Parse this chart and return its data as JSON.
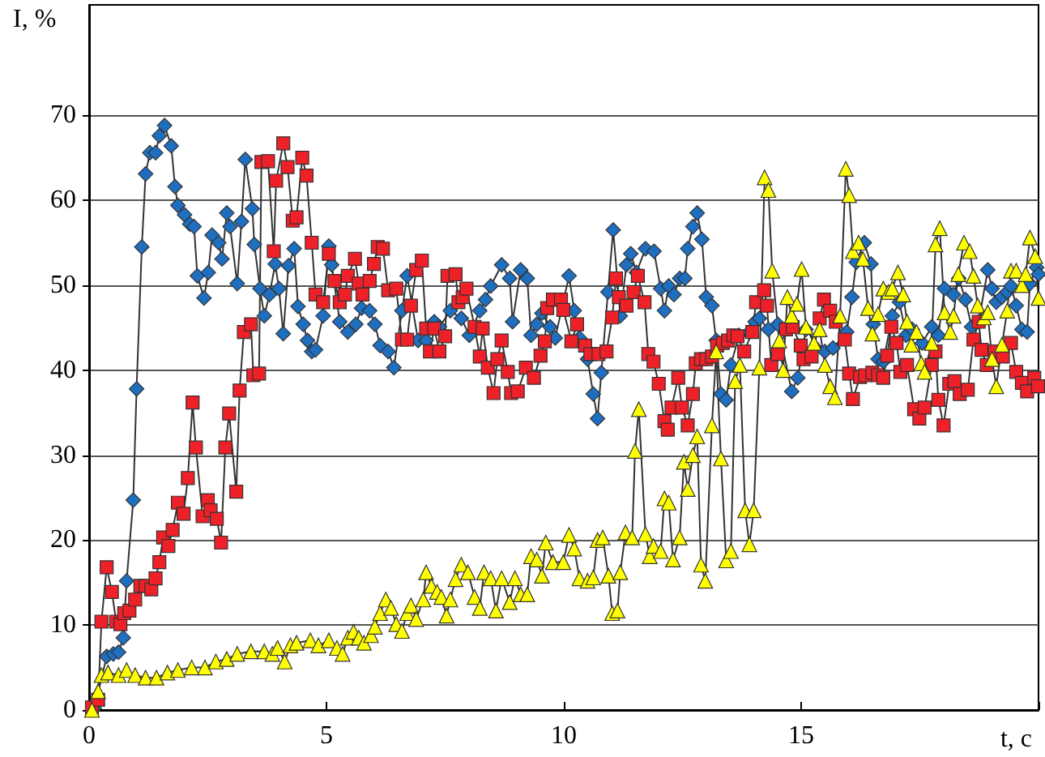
{
  "chart_data": {
    "type": "line",
    "xlabel": "t, c",
    "ylabel": "I, %",
    "xlim": [
      0,
      20
    ],
    "xticks": [
      0,
      5,
      10,
      15,
      {
        "value": 20,
        "label": null
      }
    ],
    "ylim": [
      0,
      83
    ],
    "yticks": [
      0,
      10,
      20,
      30,
      40,
      50,
      60,
      70
    ],
    "grid": "y",
    "line_style": "solid",
    "series": [
      {
        "color": "#1f6fc0",
        "marker": "diamond",
        "x": [
          0.11,
          0.37,
          0.51,
          0.62,
          0.72,
          0.79,
          0.93,
          1.0,
          1.11,
          1.19,
          1.28,
          1.4,
          1.48,
          1.59,
          1.73,
          1.81,
          1.87,
          2.01,
          2.12,
          2.21,
          2.28,
          2.42,
          2.51,
          2.59,
          2.73,
          2.8,
          2.9,
          2.97,
          3.12,
          3.21,
          3.29,
          3.44,
          3.48,
          3.6,
          3.69,
          3.8,
          3.92,
          4.0,
          4.09,
          4.2,
          4.32,
          4.4,
          4.51,
          4.6,
          4.69,
          4.77,
          4.93,
          5.05,
          5.11,
          5.28,
          5.45,
          5.62,
          5.74,
          5.91,
          6.02,
          6.13,
          6.3,
          6.42,
          6.59,
          6.7,
          6.93,
          7.1,
          7.27,
          7.38,
          7.61,
          7.84,
          8.01,
          8.23,
          8.35,
          8.46,
          8.69,
          8.86,
          8.92,
          9.09,
          9.23,
          9.31,
          9.43,
          9.54,
          9.71,
          9.82,
          10.11,
          10.22,
          10.33,
          10.5,
          10.62,
          10.71,
          10.79,
          10.93,
          11.04,
          11.19,
          11.32,
          11.41,
          11.53,
          11.72,
          11.9,
          12.04,
          12.12,
          12.21,
          12.32,
          12.44,
          12.55,
          12.61,
          12.72,
          12.81,
          12.91,
          13.0,
          13.12,
          13.21,
          13.31,
          13.42,
          13.52,
          13.69,
          13.91,
          14.03,
          14.12,
          14.31,
          14.51,
          14.8,
          14.93,
          15.1,
          15.5,
          15.67,
          15.96,
          16.07,
          16.16,
          16.33,
          16.47,
          16.52,
          16.62,
          16.73,
          16.92,
          17.07,
          17.21,
          17.34,
          17.55,
          17.75,
          17.89,
          18.02,
          18.21,
          18.32,
          18.46,
          18.59,
          18.74,
          18.93,
          19.02,
          19.11,
          19.23,
          19.34,
          19.42,
          19.53,
          19.65,
          19.76,
          19.82,
          19.96,
          20.0
        ],
        "values": [
          0.2,
          6.3,
          6.6,
          6.8,
          8.5,
          15.2,
          24.7,
          37.8,
          54.5,
          63.1,
          65.6,
          65.6,
          67.6,
          68.8,
          66.4,
          61.6,
          59.4,
          58.3,
          57.2,
          56.9,
          51.1,
          48.5,
          51.5,
          55.9,
          55,
          53.1,
          58.5,
          56.9,
          50.2,
          57.5,
          64.8,
          59,
          54.8,
          49.6,
          46.4,
          48.9,
          52.5,
          49.6,
          44.3,
          52.3,
          54.3,
          47.5,
          45.4,
          43.5,
          42.2,
          42.4,
          46.4,
          54.6,
          52.4,
          45.7,
          44.5,
          45.4,
          47.3,
          47,
          45.4,
          42.9,
          42.2,
          40.3,
          47,
          51.1,
          43.5,
          43.5,
          45.7,
          45.1,
          47,
          46.1,
          44.1,
          47,
          48.3,
          49.9,
          52.4,
          50.8,
          45.7,
          51.8,
          50.8,
          44.1,
          45.4,
          46.7,
          45.1,
          43.8,
          51.1,
          47,
          43.8,
          41.3,
          37.2,
          34.3,
          39.7,
          49.2,
          56.5,
          46.4,
          52.4,
          53.7,
          51.5,
          54.3,
          54,
          49.6,
          47,
          49.9,
          48.9,
          50.8,
          50.8,
          54.3,
          56.9,
          58.5,
          55.4,
          48.6,
          47.6,
          43.5,
          37.2,
          36.5,
          40.6,
          44.1,
          44.5,
          45.7,
          46.1,
          44.8,
          45.4,
          37.5,
          39.1,
          44.8,
          42.2,
          42.6,
          44.5,
          48.6,
          52.7,
          55,
          52.5,
          45.4,
          41.3,
          41,
          46.4,
          48,
          44.1,
          44.8,
          43.2,
          45.1,
          44.1,
          49.6,
          48.9,
          50.8,
          48.3,
          45.1,
          45.7,
          51.8,
          49.6,
          48,
          48.6,
          49.2,
          49.9,
          47.6,
          44.8,
          44.5,
          50.2,
          52.1,
          51.3
        ]
      },
      {
        "color": "#ee2028",
        "marker": "square",
        "x": [
          0.06,
          0.19,
          0.26,
          0.37,
          0.48,
          0.57,
          0.66,
          0.74,
          0.85,
          0.97,
          1.08,
          1.19,
          1.31,
          1.4,
          1.48,
          1.56,
          1.67,
          1.76,
          1.87,
          1.99,
          2.08,
          2.18,
          2.25,
          2.39,
          2.5,
          2.56,
          2.69,
          2.78,
          2.87,
          2.95,
          3.1,
          3.17,
          3.26,
          3.41,
          3.46,
          3.58,
          3.63,
          3.77,
          3.89,
          3.94,
          4.09,
          4.18,
          4.29,
          4.37,
          4.49,
          4.58,
          4.69,
          4.77,
          4.93,
          5.05,
          5.17,
          5.28,
          5.39,
          5.45,
          5.6,
          5.68,
          5.76,
          5.91,
          6.0,
          6.08,
          6.19,
          6.3,
          6.47,
          6.59,
          6.7,
          6.78,
          6.89,
          7.01,
          7.1,
          7.18,
          7.27,
          7.38,
          7.5,
          7.55,
          7.72,
          7.78,
          7.87,
          7.95,
          8.12,
          8.23,
          8.29,
          8.4,
          8.52,
          8.6,
          8.69,
          8.82,
          8.89,
          9.03,
          9.2,
          9.37,
          9.51,
          9.6,
          9.65,
          9.77,
          9.94,
          9.99,
          10.16,
          10.28,
          10.45,
          10.56,
          10.73,
          10.9,
          11.02,
          11.1,
          11.16,
          11.32,
          11.47,
          11.56,
          11.7,
          11.78,
          11.89,
          12.0,
          12.12,
          12.19,
          12.27,
          12.41,
          12.49,
          12.61,
          12.72,
          12.78,
          12.89,
          13.0,
          13.12,
          13.23,
          13.35,
          13.46,
          13.57,
          13.66,
          13.8,
          13.97,
          14.05,
          14.22,
          14.28,
          14.37,
          14.51,
          14.68,
          14.82,
          14.99,
          15.05,
          15.22,
          15.39,
          15.48,
          15.61,
          15.73,
          15.92,
          16.01,
          16.09,
          16.24,
          16.35,
          16.5,
          16.62,
          16.73,
          16.81,
          16.9,
          17.01,
          17.09,
          17.23,
          17.38,
          17.49,
          17.6,
          17.75,
          17.83,
          17.89,
          18.0,
          18.12,
          18.23,
          18.34,
          18.51,
          18.63,
          18.74,
          18.8,
          18.91,
          19.08,
          19.25,
          19.42,
          19.53,
          19.65,
          19.76,
          19.91,
          19.99
        ],
        "values": [
          0.3,
          1.2,
          10.4,
          16.8,
          13.9,
          10.4,
          10.1,
          11.4,
          11.7,
          13,
          14.6,
          14.6,
          14.2,
          15.5,
          17.4,
          20.3,
          19.3,
          21.2,
          24.4,
          23.1,
          27.3,
          36.2,
          30.9,
          22.8,
          24.7,
          23.5,
          22.5,
          19.7,
          30.9,
          34.9,
          25.7,
          37.6,
          44.5,
          45.4,
          39.4,
          39.6,
          64.5,
          64.6,
          54,
          62.3,
          66.7,
          63.9,
          57.6,
          58,
          65,
          62.9,
          55,
          48.9,
          48,
          53.7,
          50.5,
          48,
          48.9,
          51.1,
          53.1,
          50.2,
          48.9,
          50.5,
          52.5,
          54.5,
          54.3,
          49.4,
          49.6,
          43.6,
          43.6,
          47.6,
          51.8,
          52.9,
          44.9,
          42.2,
          44.9,
          42.2,
          44,
          51.1,
          51.3,
          48,
          48.6,
          49.6,
          45.1,
          41.6,
          44.9,
          40.3,
          37.3,
          41.3,
          43.5,
          39.8,
          37.3,
          37.5,
          40.3,
          39.1,
          41.7,
          43.4,
          47.3,
          48.3,
          48.3,
          47.1,
          43.4,
          45.4,
          42.9,
          41.9,
          41.9,
          42.2,
          46.2,
          50.8,
          48.6,
          47.6,
          49.2,
          51.1,
          48,
          41.9,
          41,
          38.4,
          34,
          33,
          35.6,
          39.1,
          35.6,
          33.5,
          37.2,
          40.8,
          41.3,
          41.3,
          41.6,
          42.9,
          43.2,
          43.5,
          44.1,
          44,
          42.2,
          44.5,
          48,
          49.4,
          47.6,
          40.6,
          41.9,
          44.8,
          45.1,
          42.9,
          41.3,
          41.6,
          46.1,
          48.3,
          47,
          45.7,
          43.6,
          39.6,
          36.6,
          39.2,
          39.4,
          39.7,
          39.4,
          39.1,
          41.7,
          45.1,
          43.2,
          39.8,
          40.6,
          35.4,
          34.3,
          35.6,
          40.6,
          42.2,
          36.5,
          33.5,
          38.4,
          38.7,
          37.2,
          37.7,
          43.6,
          45.7,
          42.4,
          40.6,
          42.2,
          41.6,
          43.2,
          39.8,
          38.5,
          37.5,
          39.1,
          38.1
        ]
      },
      {
        "color": "#ffff00",
        "marker": "triangle",
        "x": [
          0.06,
          0.19,
          0.26,
          0.4,
          0.62,
          0.79,
          0.97,
          1.19,
          1.42,
          1.65,
          1.87,
          2.16,
          2.44,
          2.67,
          2.9,
          3.12,
          3.41,
          3.69,
          3.86,
          3.97,
          4.12,
          4.24,
          4.37,
          4.66,
          4.83,
          5.05,
          5.22,
          5.34,
          5.45,
          5.57,
          5.68,
          5.79,
          5.94,
          6.02,
          6.13,
          6.25,
          6.36,
          6.47,
          6.59,
          6.7,
          6.78,
          6.89,
          7.04,
          7.1,
          7.21,
          7.33,
          7.42,
          7.53,
          7.61,
          7.72,
          7.84,
          7.98,
          8.12,
          8.23,
          8.32,
          8.46,
          8.57,
          8.69,
          8.86,
          8.97,
          9.09,
          9.23,
          9.31,
          9.43,
          9.54,
          9.62,
          9.77,
          9.99,
          10.11,
          10.22,
          10.33,
          10.5,
          10.62,
          10.71,
          10.82,
          10.94,
          11.02,
          11.13,
          11.19,
          11.3,
          11.44,
          11.5,
          11.58,
          11.72,
          11.81,
          11.89,
          12.04,
          12.12,
          12.21,
          12.3,
          12.44,
          12.53,
          12.61,
          12.72,
          12.81,
          12.89,
          12.98,
          13.12,
          13.21,
          13.31,
          13.42,
          13.52,
          13.61,
          13.71,
          13.82,
          13.91,
          14.0,
          14.12,
          14.23,
          14.31,
          14.39,
          14.54,
          14.62,
          14.71,
          14.8,
          14.91,
          15.01,
          15.1,
          15.27,
          15.39,
          15.5,
          15.61,
          15.71,
          15.82,
          15.94,
          16.01,
          16.09,
          16.21,
          16.3,
          16.41,
          16.5,
          16.62,
          16.73,
          16.84,
          16.92,
          17.04,
          17.15,
          17.23,
          17.32,
          17.43,
          17.53,
          17.6,
          17.75,
          17.83,
          17.92,
          18.02,
          18.14,
          18.21,
          18.31,
          18.43,
          18.55,
          18.63,
          18.72,
          18.85,
          18.93,
          19.02,
          19.11,
          19.23,
          19.34,
          19.42,
          19.53,
          19.65,
          19.73,
          19.82,
          19.93,
          20.0
        ],
        "values": [
          0,
          2.2,
          4.1,
          4.4,
          4.1,
          4.7,
          4.1,
          3.8,
          3.8,
          4.4,
          4.7,
          5,
          5,
          5.7,
          6,
          6.6,
          6.9,
          6.9,
          6.6,
          7.3,
          5.7,
          7.6,
          7.9,
          8.2,
          7.6,
          8.2,
          7.3,
          6.6,
          8.5,
          9.2,
          8.5,
          7.9,
          8.8,
          9.8,
          11.4,
          13,
          12,
          10.1,
          9.3,
          11.4,
          12.3,
          10.7,
          13,
          16.2,
          14.6,
          13.9,
          13.3,
          11.1,
          13,
          15.4,
          17.1,
          16.2,
          13.3,
          12,
          16.2,
          15.5,
          11.7,
          15.5,
          12.7,
          15.5,
          13.6,
          13.6,
          18.1,
          17.7,
          15.8,
          19.7,
          17.4,
          17.4,
          20.6,
          19,
          15.5,
          15.2,
          15.6,
          20,
          20.3,
          15.8,
          11.4,
          11.7,
          16.2,
          20.9,
          20.3,
          30.5,
          35.4,
          20.7,
          18.1,
          19.3,
          18.7,
          24.9,
          24.4,
          17.7,
          20.3,
          29.2,
          26,
          30,
          32.2,
          17.1,
          15.2,
          33.5,
          42.2,
          29.6,
          17.6,
          18.7,
          38.7,
          40.6,
          23.5,
          19.5,
          23.5,
          40.3,
          62.7,
          61.2,
          51.7,
          43.5,
          40,
          48.6,
          46.4,
          47.8,
          51.9,
          45.1,
          43.2,
          44.8,
          40.6,
          38.1,
          36.8,
          46.4,
          63.7,
          60.6,
          54,
          55,
          53.1,
          47.3,
          44.3,
          46.6,
          49.6,
          49.2,
          49.6,
          51.5,
          48.9,
          45.7,
          43,
          44.5,
          40.8,
          39.8,
          43.2,
          54.8,
          56.7,
          46.8,
          44.5,
          46.4,
          51.3,
          55,
          54,
          51.1,
          47.6,
          46.2,
          46.8,
          41.3,
          38.1,
          43,
          47,
          51.7,
          51.7,
          50,
          51.3,
          55.6,
          53.4,
          48.5
        ]
      }
    ]
  }
}
